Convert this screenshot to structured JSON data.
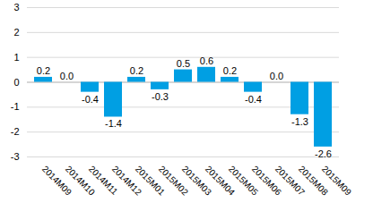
{
  "chart_data": {
    "type": "bar",
    "categories": [
      "2014M09",
      "2014M10",
      "2014M11",
      "2014M12",
      "2015M01",
      "2015M02",
      "2015M03",
      "2015M04",
      "2015M05",
      "2015M06",
      "2015M07",
      "2015M08",
      "2015M09"
    ],
    "values": [
      0.2,
      0.0,
      -0.4,
      -1.4,
      0.2,
      -0.3,
      0.5,
      0.6,
      0.2,
      -0.4,
      0.0,
      -1.3,
      -2.6
    ],
    "value_labels": [
      "0.2",
      "0.0",
      "-0.4",
      "-1.4",
      "0.2",
      "-0.3",
      "0.5",
      "0.6",
      "0.2",
      "-0.4",
      "0.0",
      "-1.3",
      "-2.6"
    ],
    "color": "#009fe3",
    "ylim": [
      -3,
      3
    ],
    "yticks": [
      -3,
      -2,
      -1,
      0,
      1,
      2,
      3
    ],
    "grid": true,
    "data_labels": true
  }
}
